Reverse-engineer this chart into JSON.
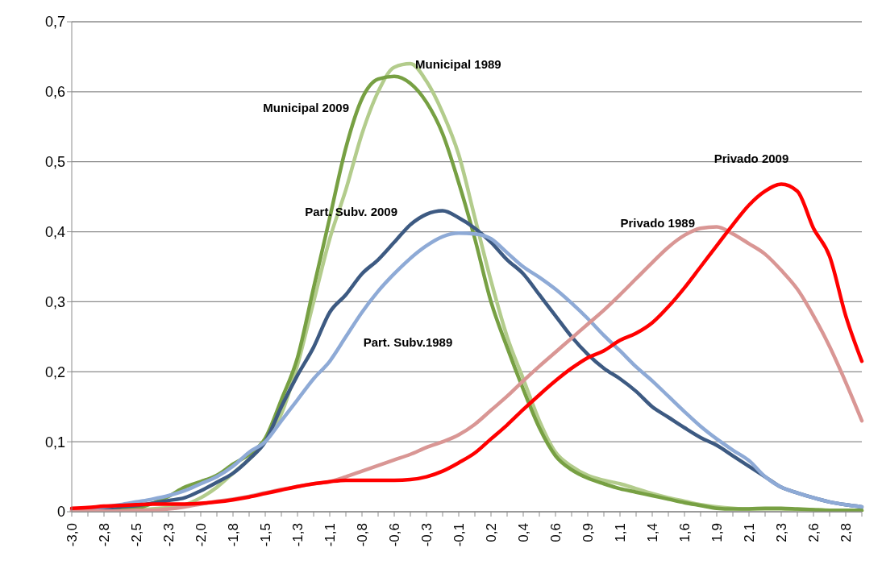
{
  "chart_data": {
    "type": "line",
    "categories": [
      "-3,0",
      null,
      "-2,8",
      null,
      "-2,5",
      null,
      "-2,3",
      null,
      "-2,0",
      null,
      "-1,8",
      null,
      "-1,5",
      null,
      "-1,3",
      null,
      "-1,1",
      null,
      "-0,8",
      null,
      "-0,6",
      null,
      "-0,3",
      null,
      "-0,1",
      null,
      "0,2",
      null,
      "0,4",
      null,
      "0,6",
      null,
      "0,9",
      null,
      "1,1",
      null,
      "1,4",
      null,
      "1,6",
      null,
      "1,9",
      null,
      "2,1",
      null,
      "2,3",
      null,
      "2,6",
      null,
      "2,8",
      null
    ],
    "series": [
      {
        "name": "Municipal 1989",
        "color": "#b3cc8c",
        "values": [
          0.001,
          0.001,
          0.001,
          0.002,
          0.003,
          0.004,
          0.006,
          0.01,
          0.02,
          0.035,
          0.055,
          0.075,
          0.1,
          0.14,
          0.21,
          0.3,
          0.39,
          0.46,
          0.54,
          0.6,
          0.635,
          0.64,
          0.615,
          0.57,
          0.51,
          0.42,
          0.33,
          0.25,
          0.19,
          0.13,
          0.085,
          0.065,
          0.052,
          0.045,
          0.04,
          0.033,
          0.026,
          0.02,
          0.015,
          0.01,
          0.007,
          0.005,
          0.004,
          0.004,
          0.004,
          0.003,
          0.003,
          0.002,
          0.002,
          0.002
        ]
      },
      {
        "name": "Municipal 2009",
        "color": "#77a043",
        "values": [
          null,
          null,
          0.002,
          0.003,
          0.005,
          0.012,
          0.022,
          0.035,
          0.043,
          0.052,
          0.068,
          0.082,
          0.105,
          0.16,
          0.22,
          0.32,
          0.42,
          0.52,
          0.59,
          0.618,
          0.622,
          0.612,
          0.585,
          0.54,
          0.47,
          0.39,
          0.3,
          0.235,
          0.175,
          0.12,
          0.08,
          0.06,
          0.048,
          0.04,
          0.033,
          0.028,
          0.023,
          0.018,
          0.013,
          0.009,
          0.005,
          0.004,
          0.004,
          0.005,
          0.005,
          0.004,
          0.003,
          0.002,
          0.002,
          0.002
        ]
      },
      {
        "name": "Part. Subv. 2009",
        "color": "#3d5a82",
        "values": [
          0.002,
          0.003,
          0.005,
          0.007,
          0.009,
          0.012,
          0.016,
          0.02,
          0.03,
          0.042,
          0.055,
          0.075,
          0.1,
          0.15,
          0.195,
          0.235,
          0.285,
          0.31,
          0.34,
          0.36,
          0.385,
          0.41,
          0.425,
          0.43,
          0.42,
          0.405,
          0.385,
          0.36,
          0.34,
          0.31,
          0.28,
          0.25,
          0.225,
          0.205,
          0.19,
          0.172,
          0.15,
          0.135,
          0.12,
          0.106,
          0.095,
          0.08,
          0.065,
          0.05,
          0.035,
          0.027,
          0.02,
          0.014,
          0.01,
          0.007
        ]
      },
      {
        "name": "Part. Subv.1989",
        "color": "#8eaad6",
        "values": [
          0.003,
          0.005,
          0.007,
          0.01,
          0.014,
          0.018,
          0.023,
          0.03,
          0.04,
          0.05,
          0.065,
          0.085,
          0.1,
          0.13,
          0.16,
          0.19,
          0.215,
          0.25,
          0.285,
          0.315,
          0.34,
          0.362,
          0.38,
          0.393,
          0.398,
          0.397,
          0.39,
          0.37,
          0.35,
          0.335,
          0.318,
          0.298,
          0.276,
          0.252,
          0.23,
          0.207,
          0.187,
          0.165,
          0.143,
          0.122,
          0.104,
          0.088,
          0.073,
          0.05,
          0.035,
          0.027,
          0.02,
          0.014,
          0.01,
          0.007
        ]
      },
      {
        "name": "Privado 1989",
        "color": "#d99694",
        "values": [
          0.001,
          0.001,
          0.001,
          0.001,
          0.002,
          0.002,
          0.004,
          0.007,
          0.011,
          0.015,
          0.018,
          0.022,
          0.027,
          0.032,
          0.036,
          0.04,
          0.043,
          0.05,
          0.058,
          0.066,
          0.074,
          0.082,
          0.092,
          0.1,
          0.11,
          0.125,
          0.145,
          0.165,
          0.187,
          0.208,
          0.228,
          0.248,
          0.268,
          0.288,
          0.31,
          0.333,
          0.356,
          0.378,
          0.395,
          0.405,
          0.407,
          0.397,
          0.383,
          0.368,
          0.345,
          0.318,
          0.28,
          0.236,
          0.185,
          0.13
        ]
      },
      {
        "name": "Privado 2009",
        "color": "#ff0000",
        "values": [
          0.005,
          0.006,
          0.008,
          0.009,
          0.01,
          0.011,
          0.011,
          0.011,
          0.012,
          0.014,
          0.017,
          0.021,
          0.026,
          0.031,
          0.036,
          0.04,
          0.043,
          0.045,
          0.045,
          0.045,
          0.045,
          0.046,
          0.05,
          0.058,
          0.07,
          0.084,
          0.104,
          0.124,
          0.146,
          0.167,
          0.187,
          0.205,
          0.22,
          0.23,
          0.245,
          0.255,
          0.27,
          0.293,
          0.32,
          0.35,
          0.38,
          0.41,
          0.438,
          0.458,
          0.468,
          0.458,
          0.405,
          0.365,
          0.28,
          0.215
        ]
      }
    ],
    "ylim": [
      0,
      0.7
    ],
    "yticks": [
      0,
      {
        "value": 0.1,
        "label": "0,1"
      },
      {
        "value": 0.2,
        "label": "0,2"
      },
      {
        "value": 0.3,
        "label": "0,3"
      },
      {
        "value": 0.4,
        "label": "0,4"
      },
      {
        "value": 0.5,
        "label": "0,5"
      },
      {
        "value": 0.6,
        "label": "0,6"
      },
      {
        "value": 0.7,
        "label": "0,7"
      }
    ],
    "grid": "y",
    "legend": false,
    "marker": "none",
    "line_style": "solid"
  }
}
